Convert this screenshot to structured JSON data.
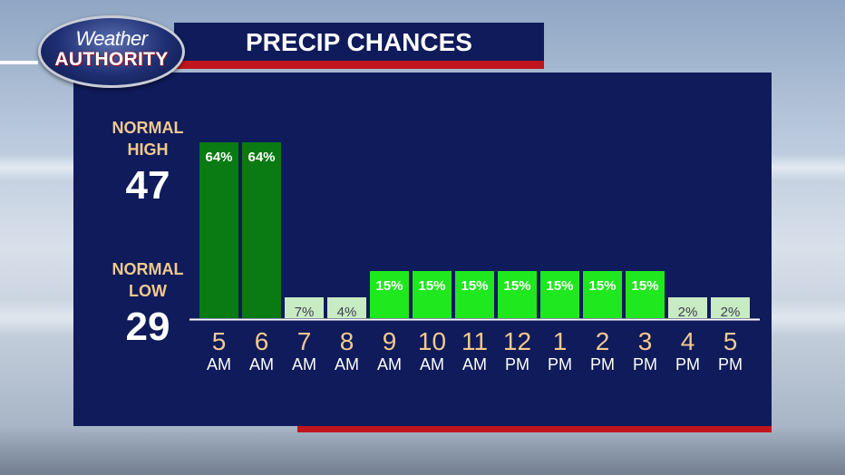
{
  "logo": {
    "line1": "Weather",
    "line2": "AUTHORITY"
  },
  "title": "PRECIP CHANCES",
  "normals": {
    "high_label_1": "NORMAL",
    "high_label_2": "HIGH",
    "high_value": "47",
    "low_label_1": "NORMAL",
    "low_label_2": "LOW",
    "low_value": "29"
  },
  "colors": {
    "panel": "#0f1b5a",
    "accent_red": "#c0151e",
    "high_bar": "#0a7a12",
    "mid_bar": "#1fe81f",
    "low_bar": "#c9ebc4",
    "tick_hour": "#f2c98e"
  },
  "chart_data": {
    "type": "bar",
    "categories": [
      {
        "hour": "5",
        "ampm": "AM"
      },
      {
        "hour": "6",
        "ampm": "AM"
      },
      {
        "hour": "7",
        "ampm": "AM"
      },
      {
        "hour": "8",
        "ampm": "AM"
      },
      {
        "hour": "9",
        "ampm": "AM"
      },
      {
        "hour": "10",
        "ampm": "AM"
      },
      {
        "hour": "11",
        "ampm": "AM"
      },
      {
        "hour": "12",
        "ampm": "PM"
      },
      {
        "hour": "1",
        "ampm": "PM"
      },
      {
        "hour": "2",
        "ampm": "PM"
      },
      {
        "hour": "3",
        "ampm": "PM"
      },
      {
        "hour": "4",
        "ampm": "PM"
      },
      {
        "hour": "5",
        "ampm": "PM"
      }
    ],
    "values": [
      64,
      64,
      7,
      4,
      15,
      15,
      15,
      15,
      15,
      15,
      15,
      2,
      2
    ],
    "labels": [
      "64%",
      "64%",
      "7%",
      "4%",
      "15%",
      "15%",
      "15%",
      "15%",
      "15%",
      "15%",
      "15%",
      "2%",
      "2%"
    ]
  }
}
